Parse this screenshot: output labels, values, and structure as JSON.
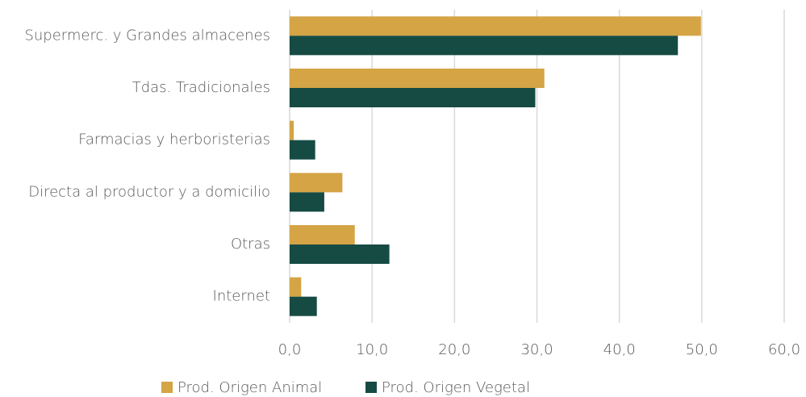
{
  "chart_data": {
    "type": "barh",
    "categories": [
      "Supermerc. y Grandes almacenes",
      "Tdas. Tradicionales",
      "Farmacias y herboristerias",
      "Directa al productor y a domicilio",
      "Otras",
      "Internet"
    ],
    "series": [
      {
        "name": "Prod. Origen Animal",
        "color": "#d4a445",
        "values": [
          49.9,
          30.9,
          0.5,
          6.4,
          7.9,
          1.4
        ]
      },
      {
        "name": "Prod. Origen Vegetal",
        "color": "#164b44",
        "values": [
          47.1,
          29.8,
          3.1,
          4.2,
          12.1,
          3.3
        ]
      }
    ],
    "xlim": [
      0,
      60
    ],
    "xticks": [
      {
        "value": 0,
        "label": "0,0"
      },
      {
        "value": 10,
        "label": "10,0"
      },
      {
        "value": 20,
        "label": "20,0"
      },
      {
        "value": 30,
        "label": "30,0"
      },
      {
        "value": 40,
        "label": "40,0"
      },
      {
        "value": 50,
        "label": "50,0"
      },
      {
        "value": 60,
        "label": "60,0"
      }
    ],
    "grid": true,
    "legend": "bottom"
  }
}
